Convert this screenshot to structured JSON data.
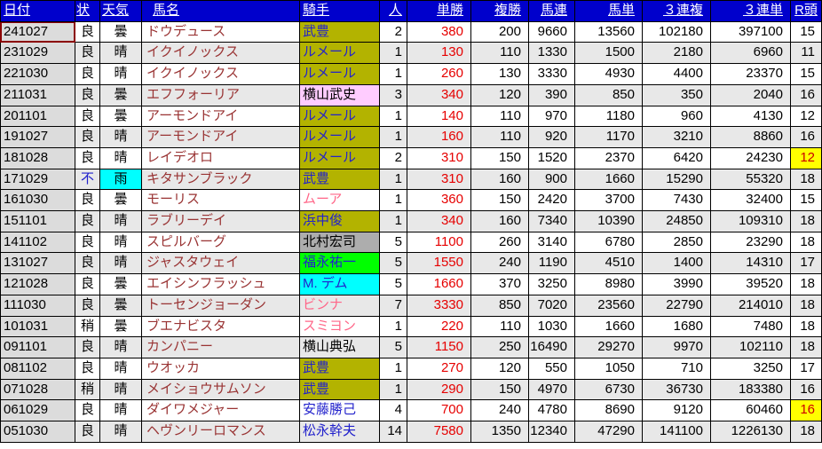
{
  "palette": {
    "header_bg": "#0000cc",
    "header_text": "#ffffff",
    "grid_line": "#000000",
    "row_stripe": "#e8e8e8",
    "date_col_bg": "#dcdcdc",
    "selected_cell_border": "#8b0000",
    "horse_name_text": "#993333",
    "win_odds_red": "#e60000",
    "jockey_link_blue": "#2222cc",
    "jockey_pink_text": "#ff6688",
    "jockey_olive_bg": "#b3b300",
    "jockey_pink_bg": "#ffccff",
    "jockey_gray_bg": "#adadad",
    "jockey_green_bg": "#00ff00",
    "jockey_cyan_bg": "#00ffff",
    "rain_cyan_bg": "#00ffff",
    "highlight_yellow_bg": "#ffff00",
    "highlight_red_text": "#cc0000"
  },
  "table": {
    "columns": [
      {
        "key": "date",
        "label": "日付"
      },
      {
        "key": "cond",
        "label": "状"
      },
      {
        "key": "weather",
        "label": "天気"
      },
      {
        "key": "horse",
        "label": "馬名"
      },
      {
        "key": "jockey",
        "label": "騎手"
      },
      {
        "key": "pop",
        "label": "人"
      },
      {
        "key": "win",
        "label": "単勝"
      },
      {
        "key": "place",
        "label": "複勝"
      },
      {
        "key": "quinella",
        "label": "馬連"
      },
      {
        "key": "exacta",
        "label": "馬単"
      },
      {
        "key": "trio",
        "label": "３連複"
      },
      {
        "key": "trifecta",
        "label": "３連単"
      },
      {
        "key": "heads",
        "label": "R頭"
      }
    ],
    "rows": [
      {
        "date": "241027",
        "cond": "良",
        "weather": "曇",
        "horse": "ドウデュース",
        "jockey": "武豊",
        "jockey_style": "olive-blue",
        "pop": "2",
        "win": "380",
        "place": "200",
        "quinella": "9660",
        "exacta": "13560",
        "trio": "102180",
        "trifecta": "397100",
        "heads": "15",
        "selected": true
      },
      {
        "date": "231029",
        "cond": "良",
        "weather": "晴",
        "horse": "イクイノックス",
        "jockey": "ルメール",
        "jockey_style": "olive-blue",
        "pop": "1",
        "win": "130",
        "place": "110",
        "quinella": "1330",
        "exacta": "1500",
        "trio": "2180",
        "trifecta": "6960",
        "heads": "11"
      },
      {
        "date": "221030",
        "cond": "良",
        "weather": "晴",
        "horse": "イクイノックス",
        "jockey": "ルメール",
        "jockey_style": "olive-blue",
        "pop": "1",
        "win": "260",
        "place": "130",
        "quinella": "3330",
        "exacta": "4930",
        "trio": "4400",
        "trifecta": "23370",
        "heads": "15"
      },
      {
        "date": "211031",
        "cond": "良",
        "weather": "曇",
        "horse": "エフフォーリア",
        "jockey": "横山武史",
        "jockey_style": "pink-black",
        "pop": "3",
        "win": "340",
        "place": "120",
        "quinella": "390",
        "exacta": "850",
        "trio": "350",
        "trifecta": "2040",
        "heads": "16"
      },
      {
        "date": "201101",
        "cond": "良",
        "weather": "曇",
        "horse": "アーモンドアイ",
        "jockey": "ルメール",
        "jockey_style": "olive-blue",
        "pop": "1",
        "win": "140",
        "place": "110",
        "quinella": "970",
        "exacta": "1180",
        "trio": "960",
        "trifecta": "4130",
        "heads": "12"
      },
      {
        "date": "191027",
        "cond": "良",
        "weather": "晴",
        "horse": "アーモンドアイ",
        "jockey": "ルメール",
        "jockey_style": "olive-blue",
        "pop": "1",
        "win": "160",
        "place": "110",
        "quinella": "920",
        "exacta": "1170",
        "trio": "3210",
        "trifecta": "8860",
        "heads": "16"
      },
      {
        "date": "181028",
        "cond": "良",
        "weather": "晴",
        "horse": "レイデオロ",
        "jockey": "ルメール",
        "jockey_style": "olive-blue",
        "pop": "2",
        "win": "310",
        "place": "150",
        "quinella": "1520",
        "exacta": "2370",
        "trio": "6420",
        "trifecta": "24230",
        "heads": "12",
        "heads_highlight": true
      },
      {
        "date": "171029",
        "cond": "不",
        "cond_blue": true,
        "weather": "雨",
        "weather_cyan": true,
        "horse": "キタサンブラック",
        "jockey": "武豊",
        "jockey_style": "olive-blue",
        "pop": "1",
        "win": "310",
        "place": "160",
        "quinella": "900",
        "exacta": "1660",
        "trio": "15290",
        "trifecta": "55320",
        "heads": "18"
      },
      {
        "date": "161030",
        "cond": "良",
        "weather": "曇",
        "horse": "モーリス",
        "jockey": "ムーア",
        "jockey_style": "white-pink",
        "pop": "1",
        "win": "360",
        "place": "150",
        "quinella": "2420",
        "exacta": "3700",
        "trio": "7430",
        "trifecta": "32400",
        "heads": "15"
      },
      {
        "date": "151101",
        "cond": "良",
        "weather": "晴",
        "horse": "ラブリーデイ",
        "jockey": "浜中俊",
        "jockey_style": "olive-blue",
        "pop": "1",
        "win": "340",
        "place": "160",
        "quinella": "7340",
        "exacta": "10390",
        "trio": "24850",
        "trifecta": "109310",
        "heads": "18"
      },
      {
        "date": "141102",
        "cond": "良",
        "weather": "晴",
        "horse": "スピルバーグ",
        "jockey": "北村宏司",
        "jockey_style": "gray-black",
        "pop": "5",
        "win": "1100",
        "place": "260",
        "quinella": "3140",
        "exacta": "6780",
        "trio": "2850",
        "trifecta": "23290",
        "heads": "18"
      },
      {
        "date": "131027",
        "cond": "良",
        "weather": "晴",
        "horse": "ジャスタウェイ",
        "jockey": "福永祐一",
        "jockey_style": "green-blue",
        "pop": "5",
        "win": "1550",
        "place": "240",
        "quinella": "1190",
        "exacta": "4510",
        "trio": "1400",
        "trifecta": "14310",
        "heads": "17"
      },
      {
        "date": "121028",
        "cond": "良",
        "weather": "曇",
        "horse": "エイシンフラッシュ",
        "jockey": "M. デム",
        "jockey_style": "cyan-blue",
        "pop": "5",
        "win": "1660",
        "place": "370",
        "quinella": "3250",
        "exacta": "8980",
        "trio": "3990",
        "trifecta": "39520",
        "heads": "18"
      },
      {
        "date": "111030",
        "cond": "良",
        "weather": "曇",
        "horse": "トーセンジョーダン",
        "jockey": "ビンナ",
        "jockey_style": "white-pink",
        "pop": "7",
        "win": "3330",
        "place": "850",
        "quinella": "7020",
        "exacta": "23560",
        "trio": "22790",
        "trifecta": "214010",
        "heads": "18"
      },
      {
        "date": "101031",
        "cond": "稍",
        "weather": "曇",
        "horse": "ブエナビスタ",
        "jockey": "スミヨン",
        "jockey_style": "white-pink",
        "pop": "1",
        "win": "220",
        "place": "110",
        "quinella": "1030",
        "exacta": "1660",
        "trio": "1680",
        "trifecta": "7480",
        "heads": "18"
      },
      {
        "date": "091101",
        "cond": "良",
        "weather": "晴",
        "horse": "カンパニー",
        "jockey": "横山典弘",
        "jockey_style": "white-black",
        "pop": "5",
        "win": "1150",
        "place": "250",
        "quinella": "16490",
        "exacta": "29270",
        "trio": "9970",
        "trifecta": "102110",
        "heads": "18"
      },
      {
        "date": "081102",
        "cond": "良",
        "weather": "晴",
        "horse": "ウオッカ",
        "jockey": "武豊",
        "jockey_style": "olive-blue",
        "pop": "1",
        "win": "270",
        "place": "120",
        "quinella": "550",
        "exacta": "1050",
        "trio": "710",
        "trifecta": "3250",
        "heads": "17"
      },
      {
        "date": "071028",
        "cond": "稍",
        "weather": "晴",
        "horse": "メイショウサムソン",
        "jockey": "武豊",
        "jockey_style": "olive-blue",
        "pop": "1",
        "win": "290",
        "place": "150",
        "quinella": "4970",
        "exacta": "6730",
        "trio": "36730",
        "trifecta": "183380",
        "heads": "16"
      },
      {
        "date": "061029",
        "cond": "良",
        "weather": "晴",
        "horse": "ダイワメジャー",
        "jockey": "安藤勝己",
        "jockey_style": "white-blue",
        "pop": "4",
        "win": "700",
        "place": "240",
        "quinella": "4780",
        "exacta": "8690",
        "trio": "9120",
        "trifecta": "60460",
        "heads": "16",
        "heads_highlight": true
      },
      {
        "date": "051030",
        "cond": "良",
        "weather": "晴",
        "horse": "ヘヴンリーロマンス",
        "jockey": "松永幹夫",
        "jockey_style": "white-blue",
        "pop": "14",
        "win": "7580",
        "place": "1350",
        "quinella": "12340",
        "exacta": "47290",
        "trio": "141100",
        "trifecta": "1226130",
        "heads": "18"
      }
    ]
  }
}
